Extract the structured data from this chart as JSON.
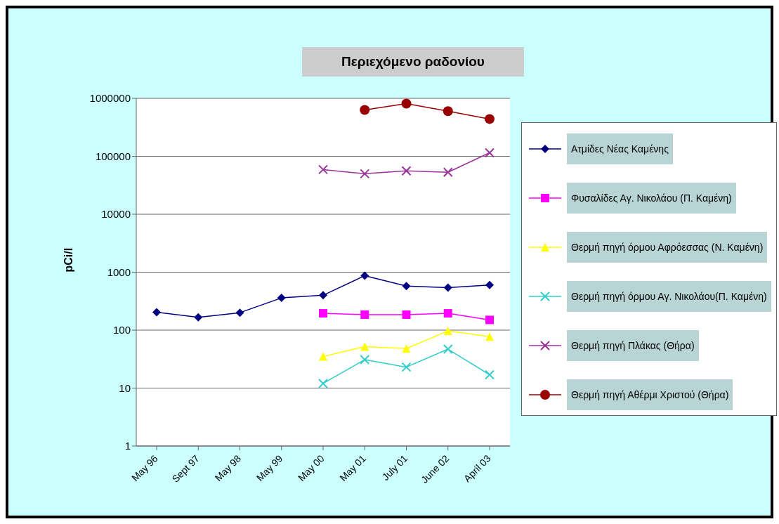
{
  "chart_data": {
    "type": "line",
    "title": "Περιεχόμενο ραδονίου",
    "ylabel": "pCi/l",
    "categories": [
      "May 96",
      "Sept 97",
      "May 98",
      "May 99",
      "May 00",
      "May 01",
      "July 01",
      "June 02",
      "April 03"
    ],
    "series": [
      {
        "name": "Ατμίδες Νέας Καμένης",
        "color": "#000080",
        "marker": "diamond",
        "values": [
          204,
          166,
          200,
          360,
          400,
          870,
          575,
          540,
          600
        ]
      },
      {
        "name": "Φυσαλίδες Αγ. Νικολάου (Π. Καμένη)",
        "color": "#ff00ff",
        "marker": "square",
        "values": [
          null,
          null,
          null,
          null,
          195,
          185,
          185,
          195,
          150
        ]
      },
      {
        "name": "Θερμή πηγή όρμου Αφρόεσσας (Ν. Καμένη)",
        "color": "#ffff00",
        "marker": "triangle",
        "values": [
          null,
          null,
          null,
          null,
          35,
          52,
          48,
          97,
          77
        ]
      },
      {
        "name": "Θερμή πηγή όρμου Αγ. Νικολάου(Π. Καμένη)",
        "color": "#33cccc",
        "marker": "cross",
        "values": [
          null,
          null,
          null,
          null,
          12,
          31,
          23,
          47,
          17
        ]
      },
      {
        "name": "Θερμή πηγή Πλάκας (Θήρα)",
        "color": "#993399",
        "marker": "cross",
        "values": [
          null,
          null,
          null,
          null,
          59000,
          50000,
          56000,
          53000,
          115000
        ]
      },
      {
        "name": "Θερμή πηγή Αθέρμι Χριστού (Θήρα)",
        "color": "#990000",
        "marker": "circle",
        "values": [
          null,
          null,
          null,
          null,
          null,
          630000,
          810000,
          600000,
          440000
        ]
      }
    ],
    "log": true,
    "ylim": [
      1,
      1000000
    ],
    "yticks": [
      1,
      10,
      100,
      1000,
      10000,
      100000,
      1000000
    ],
    "grid": "y",
    "legend": "right"
  }
}
